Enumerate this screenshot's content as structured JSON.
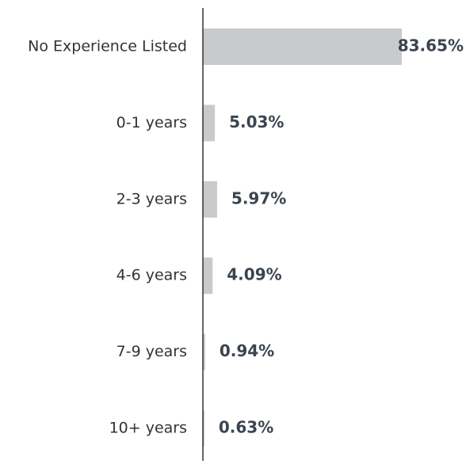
{
  "chart_data": {
    "type": "bar",
    "orientation": "horizontal",
    "categories": [
      "No Experience Listed",
      "0-1 years",
      "2-3 years",
      "4-6 years",
      "7-9 years",
      "10+ years"
    ],
    "values": [
      83.65,
      5.03,
      5.97,
      4.09,
      0.94,
      0.63
    ],
    "value_labels": [
      "83.65%",
      "5.03%",
      "5.97%",
      "4.09%",
      "0.94%",
      "0.63%"
    ],
    "color": "#c9cacc",
    "xlim": [
      0,
      100
    ]
  }
}
